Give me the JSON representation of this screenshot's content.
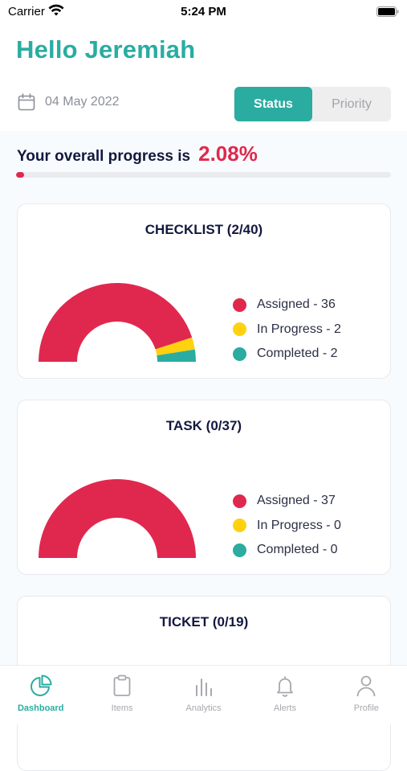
{
  "status_bar": {
    "carrier": "Carrier",
    "time": "5:24 PM"
  },
  "header": {
    "greeting": "Hello Jeremiah",
    "date": "04 May 2022"
  },
  "segment": {
    "options": [
      "Status",
      "Priority"
    ],
    "selected": "Status"
  },
  "progress": {
    "label": "Your overall progress is",
    "value": "2.08%",
    "fraction": 0.0208
  },
  "colors": {
    "teal": "#2aaca1",
    "red": "#e0284f",
    "yellow": "#ffd10f",
    "navy": "#13183f"
  },
  "cards": [
    {
      "title": "CHECKLIST (2/40)",
      "legend": [
        "Assigned - 36",
        "In Progress - 2",
        "Completed - 2"
      ],
      "chart_data": {
        "type": "pie",
        "categories": [
          "Assigned",
          "In Progress",
          "Completed"
        ],
        "values": [
          36,
          2,
          2
        ]
      }
    },
    {
      "title": "TASK (0/37)",
      "legend": [
        "Assigned - 37",
        "In Progress - 0",
        "Completed - 0"
      ],
      "chart_data": {
        "type": "pie",
        "categories": [
          "Assigned",
          "In Progress",
          "Completed"
        ],
        "values": [
          37,
          0,
          0
        ]
      }
    },
    {
      "title": "TICKET (0/19)"
    }
  ],
  "tabbar": {
    "items": [
      {
        "label": "Dashboard",
        "icon": "pie-chart-icon",
        "active": true
      },
      {
        "label": "Items",
        "icon": "clipboard-icon",
        "active": false
      },
      {
        "label": "Analytics",
        "icon": "bar-chart-icon",
        "active": false
      },
      {
        "label": "Alerts",
        "icon": "bell-icon",
        "active": false
      },
      {
        "label": "Profile",
        "icon": "user-icon",
        "active": false
      }
    ]
  }
}
